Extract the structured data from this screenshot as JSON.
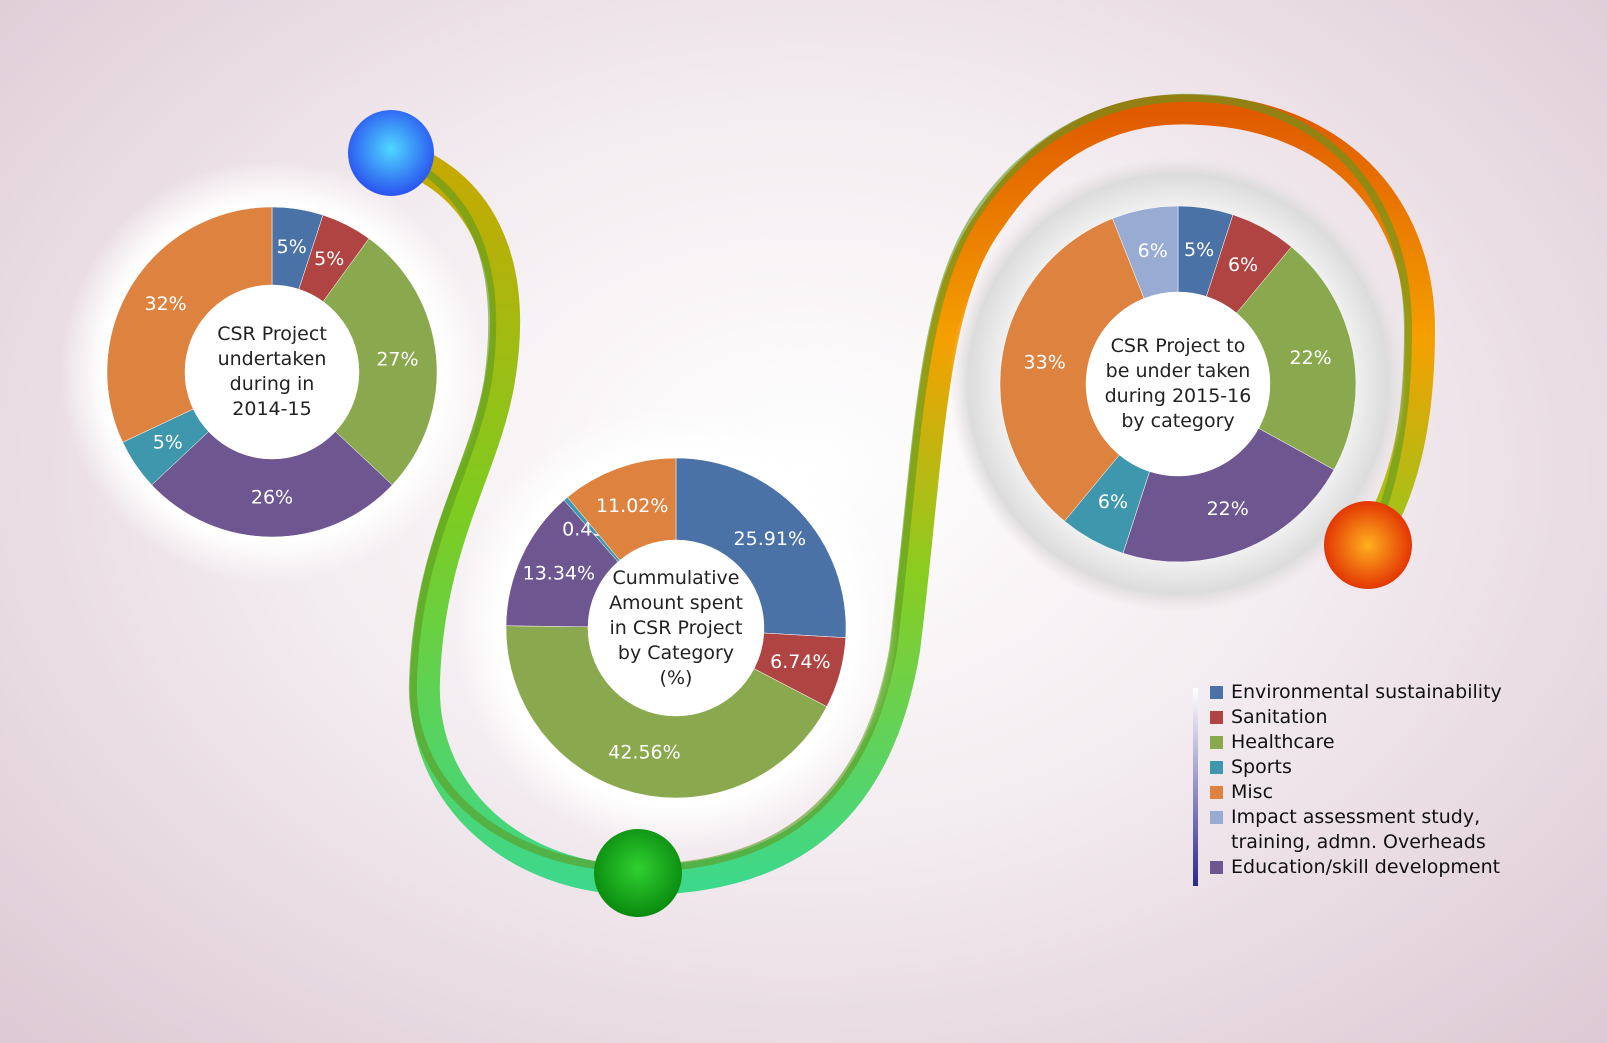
{
  "chart_data": [
    {
      "type": "pie",
      "title": "CSR Project undertaken during in 2014-15",
      "categories": [
        "Environmental sustainability",
        "Sanitation",
        "Healthcare",
        "Education/skill development",
        "Sports",
        "Misc"
      ],
      "values": [
        5,
        5,
        27,
        26,
        5,
        32
      ],
      "value_labels": [
        "5%",
        "5%",
        "27%",
        "26%",
        "5%",
        "32%"
      ],
      "colors": [
        "#4a72a6",
        "#b04442",
        "#8aa84e",
        "#6e5690",
        "#3f97ae",
        "#de8240"
      ]
    },
    {
      "type": "pie",
      "title": "Cummulative Amount spent in CSR Project by Category (%)",
      "categories": [
        "Environmental sustainability",
        "Sanitation",
        "Healthcare",
        "Education/skill development",
        "Sports",
        "Misc"
      ],
      "values": [
        25.91,
        6.74,
        42.56,
        13.34,
        0.43,
        11.02
      ],
      "value_labels": [
        "25.91%",
        "6.74%",
        "42.56%",
        "13.34%",
        "0.43%",
        "11.02%"
      ],
      "colors": [
        "#4a72a6",
        "#b04442",
        "#8aa84e",
        "#6e5690",
        "#3f97ae",
        "#de8240"
      ]
    },
    {
      "type": "pie",
      "title": "CSR Project to be under taken during 2015-16 by category",
      "categories": [
        "Environmental sustainability",
        "Sanitation",
        "Healthcare",
        "Education/skill development",
        "Sports",
        "Misc",
        "Impact assessment study, training, admn. Overheads"
      ],
      "values": [
        5,
        6,
        22,
        22,
        6,
        33,
        6
      ],
      "value_labels": [
        "5%",
        "6%",
        "22%",
        "22%",
        "6%",
        "33%",
        "6%"
      ],
      "colors": [
        "#4a72a6",
        "#b04442",
        "#8aa84e",
        "#6e5690",
        "#3f97ae",
        "#de8240",
        "#97abd3"
      ]
    }
  ],
  "legend": {
    "items": [
      {
        "name": "Environmental sustainability",
        "color": "#4a72a6"
      },
      {
        "name": "Sanitation",
        "color": "#b04442"
      },
      {
        "name": "Healthcare",
        "color": "#8aa84e"
      },
      {
        "name": "Sports",
        "color": "#3f97ae"
      },
      {
        "name": "Misc",
        "color": "#de8240"
      },
      {
        "name": "Impact assessment study, training, admn. Overheads",
        "color": "#97abd3"
      },
      {
        "name": "Education/skill development",
        "color": "#6e5690"
      }
    ]
  }
}
